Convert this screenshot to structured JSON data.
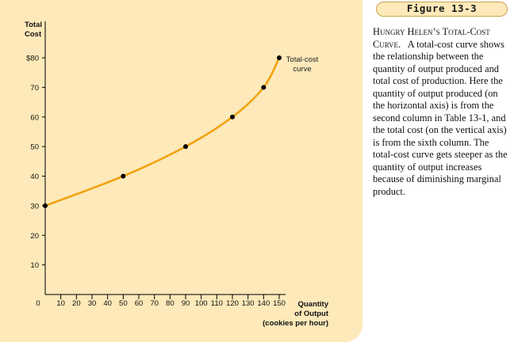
{
  "figure": {
    "label": "Figure 13-3",
    "caption_title": "Hungry Helen’s Total-Cost Curve.",
    "caption_text": "A total-cost curve shows the relationship between the quantity of output produced and total cost of production. Here the quantity of output produced (on the horizontal axis) is from the second column in Table 13-1, and the total cost (on the vertical axis) is from the sixth column. The total-cost curve gets steeper as the quantity of output increases because of diminishing marginal product."
  },
  "colors": {
    "panel": "#fde9b9",
    "badge_border": "#c9a24a",
    "curve": "#f2a20f",
    "point": "#000000"
  },
  "chart_data": {
    "type": "line",
    "ylabel": "Total Cost",
    "xlabel": [
      "Quantity",
      "of Output",
      "(cookies per hour)"
    ],
    "curve_label": [
      "Total-cost",
      "curve"
    ],
    "x": [
      0,
      50,
      90,
      120,
      140,
      150
    ],
    "series": [
      {
        "values": [
          30,
          40,
          50,
          60,
          70,
          80
        ]
      }
    ],
    "xlim": [
      0,
      150
    ],
    "ylim": [
      0,
      80
    ],
    "x_ticks": [
      0,
      10,
      20,
      30,
      40,
      50,
      60,
      70,
      80,
      90,
      100,
      110,
      120,
      130,
      140,
      150
    ],
    "x_tick_labels": [
      "0",
      "10",
      "20",
      "30",
      "40",
      "50",
      "60",
      "70",
      "80",
      "90",
      "100",
      "110",
      "120",
      "130",
      "140",
      "150"
    ],
    "y_ticks": [
      10,
      20,
      30,
      40,
      50,
      60,
      70,
      80
    ],
    "y_tick_labels": [
      "10",
      "20",
      "30",
      "40",
      "50",
      "60",
      "70",
      "$80"
    ],
    "grid": false,
    "legend": "none"
  }
}
